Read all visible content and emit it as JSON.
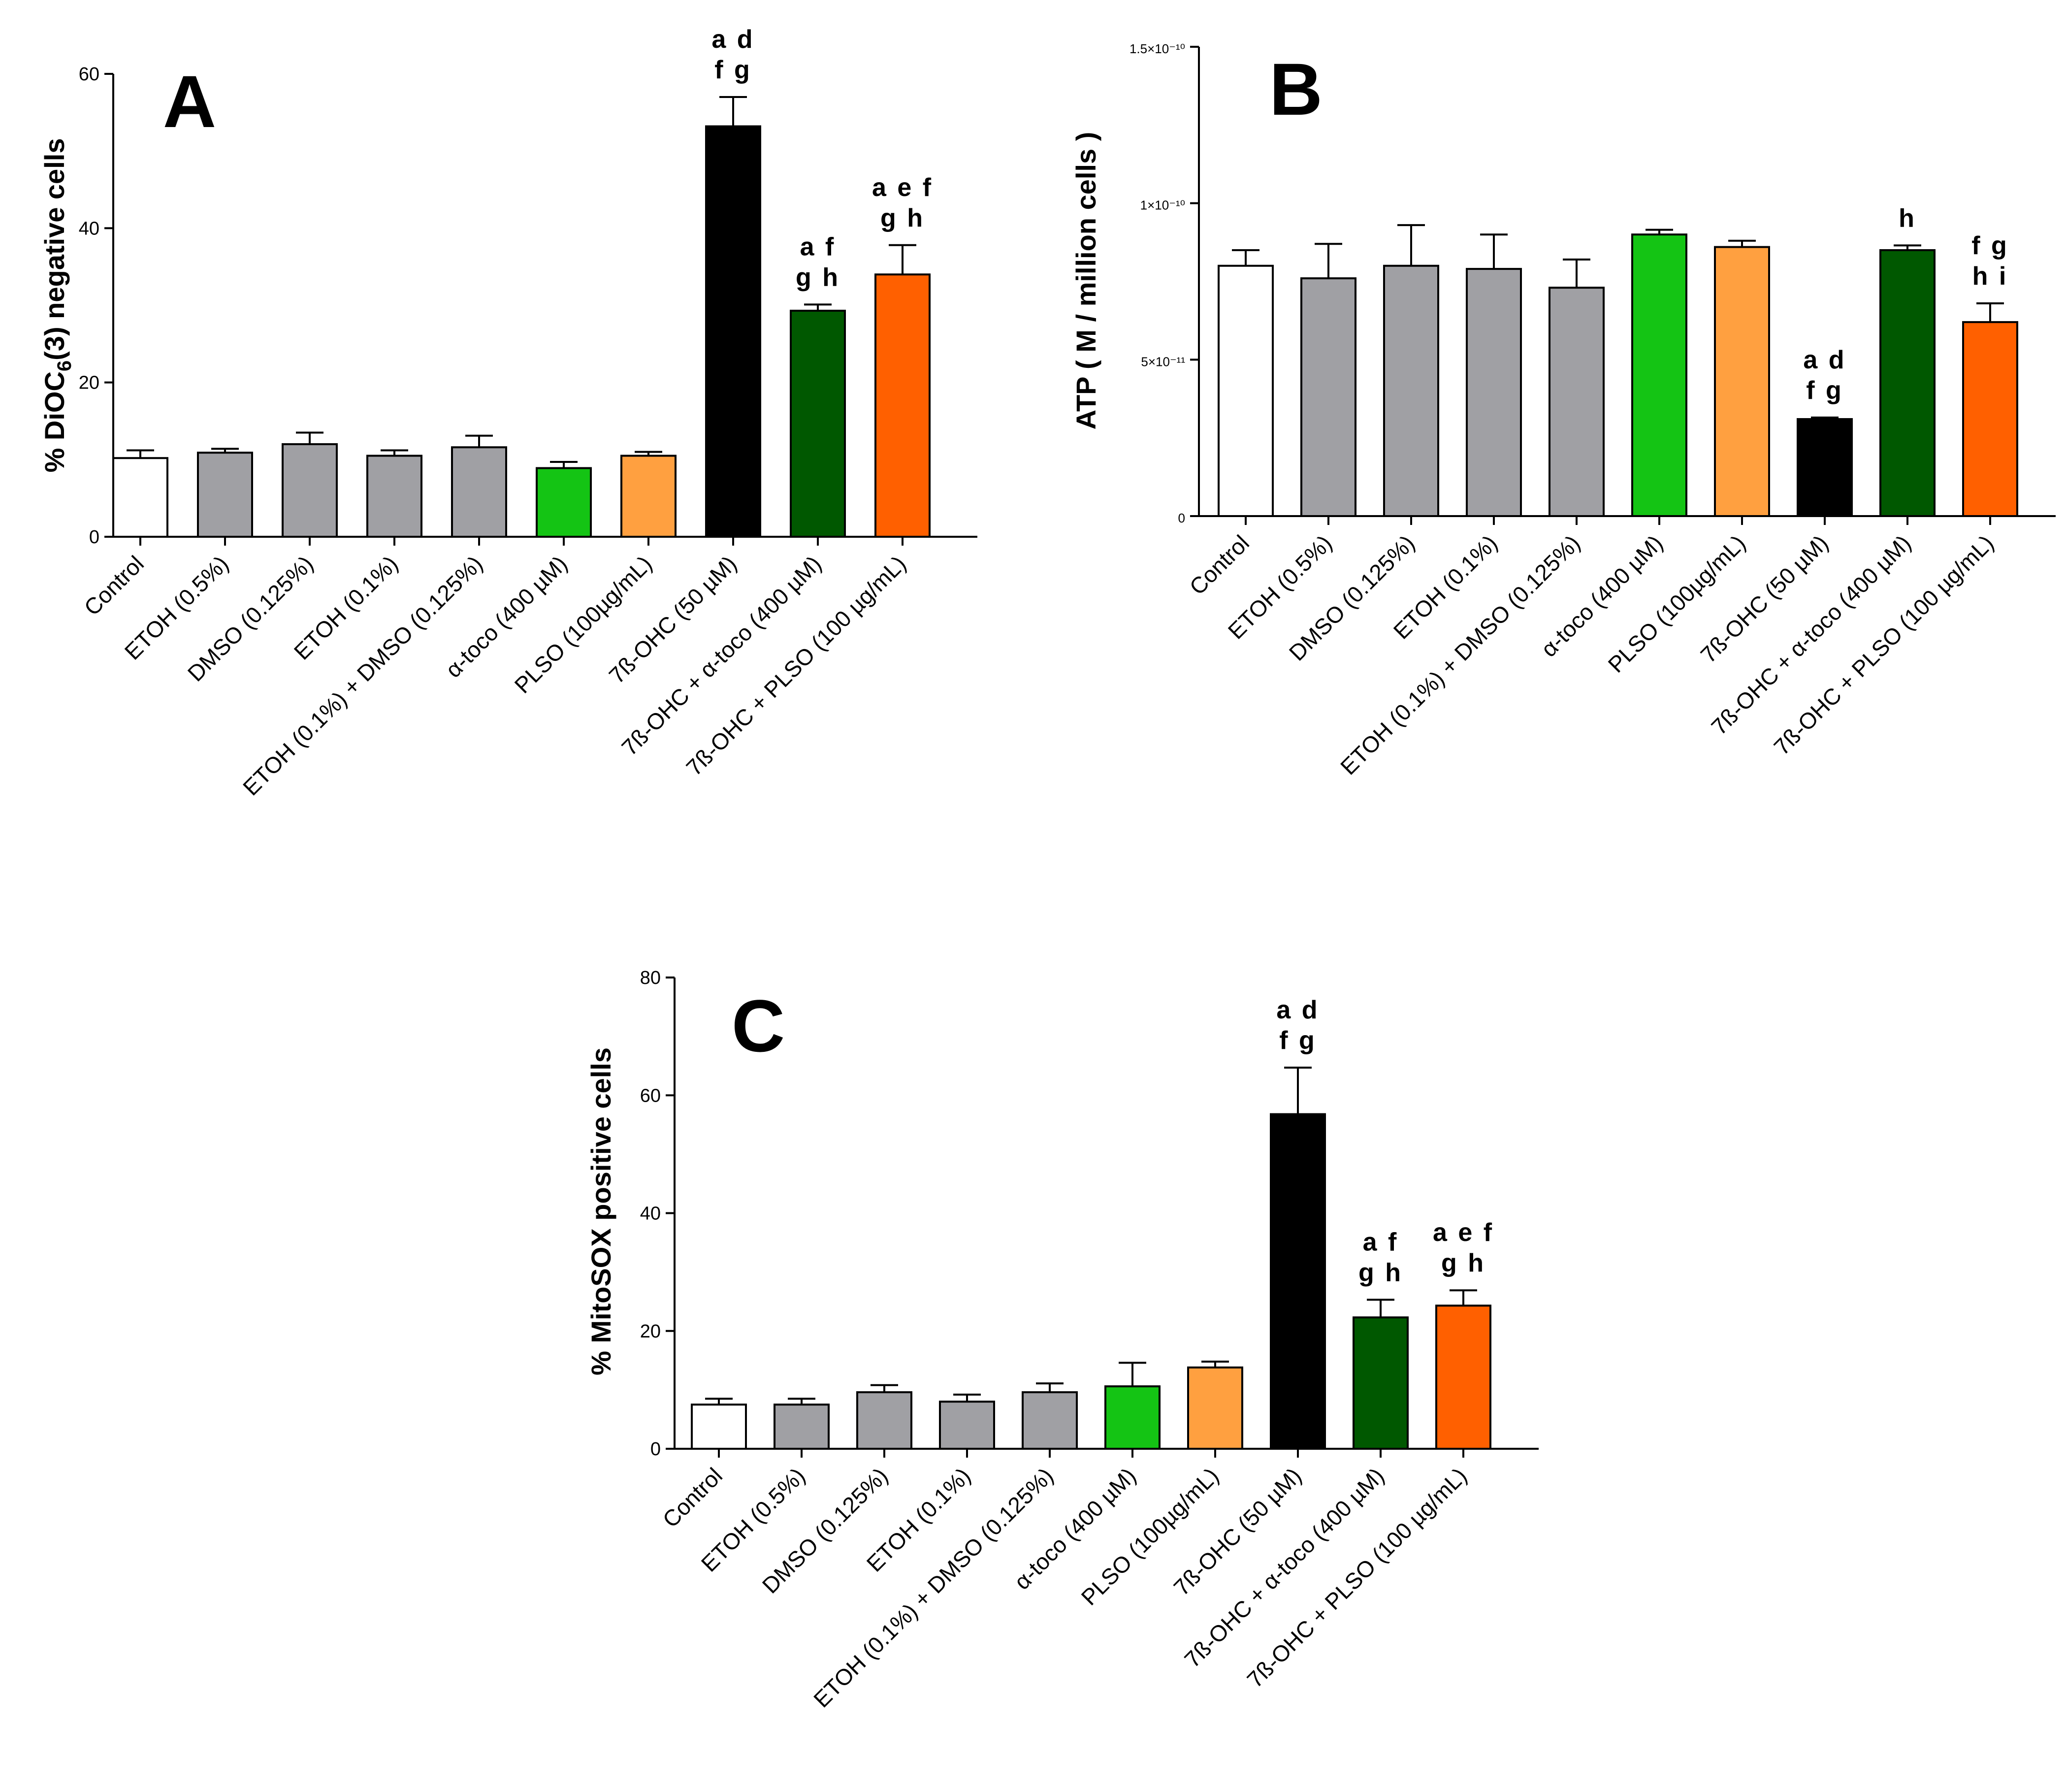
{
  "chart_data": [
    {
      "panel": "A",
      "type": "bar",
      "ylabel_prefix": "% DiOC",
      "ylabel_sub": "6",
      "ylabel_suffix": "(3) negative cells",
      "ylim": [
        0,
        60
      ],
      "yticks": [
        "0",
        "20",
        "40",
        "60"
      ],
      "ytick_values": [
        0,
        20,
        40,
        60
      ],
      "categories": [
        "Control",
        "ETOH (0.5%)",
        "DMSO (0.125%)",
        "ETOH (0.1%)",
        "ETOH (0.1%) + DMSO (0.125%)",
        "α-toco (400 µM)",
        "PLSO (100µg/mL)",
        "7ß-OHC (50 µM)",
        "7ß-OHC + α-toco (400 µM)",
        "7ß-OHC + PLSO (100 µg/mL)"
      ],
      "values": [
        10.2,
        10.9,
        12.0,
        10.5,
        11.6,
        8.9,
        10.5,
        53.2,
        29.3,
        34.0
      ],
      "errors": [
        1.0,
        0.5,
        1.5,
        0.7,
        1.5,
        0.8,
        0.5,
        3.8,
        0.8,
        3.8
      ],
      "colors": [
        "#ffffff",
        "#a0a0a4",
        "#a0a0a4",
        "#a0a0a4",
        "#a0a0a4",
        "#14c414",
        "#ffa040",
        "#000000",
        "#005800",
        "#ff6000"
      ],
      "annotations": [
        null,
        null,
        null,
        null,
        null,
        null,
        null,
        [
          "a d",
          "f g"
        ],
        [
          "a f",
          "g h"
        ],
        [
          "a e f",
          "g h"
        ]
      ],
      "grid": false
    },
    {
      "panel": "B",
      "type": "bar",
      "ylabel": "ATP ( M / million cells )",
      "ylim": [
        0,
        1.5e-10
      ],
      "yticks": [
        "0",
        "5×10⁻¹¹",
        "1×10⁻¹⁰",
        "1.5×10⁻¹⁰"
      ],
      "ytick_values": [
        0,
        5e-11,
        1e-10,
        1.5e-10
      ],
      "categories": [
        "Control",
        "ETOH (0.5%)",
        "DMSO (0.125%)",
        "ETOH (0.1%)",
        "ETOH (0.1%) + DMSO (0.125%)",
        "α-toco (400 µM)",
        "PLSO (100µg/mL)",
        "7ß-OHC (50 µM)",
        "7ß-OHC + α-toco (400 µM)",
        "7ß-OHC + PLSO (100 µg/mL)"
      ],
      "values": [
        8e-11,
        7.6e-11,
        8e-11,
        7.9e-11,
        7.3e-11,
        9e-11,
        8.6e-11,
        3.1e-11,
        8.5e-11,
        6.2e-11
      ],
      "errors": [
        5e-12,
        1.1e-11,
        1.3e-11,
        1.1e-11,
        9e-12,
        1.5e-12,
        2e-12,
        5e-13,
        1.5e-12,
        6e-12
      ],
      "colors": [
        "#ffffff",
        "#a0a0a4",
        "#a0a0a4",
        "#a0a0a4",
        "#a0a0a4",
        "#14c414",
        "#ffa040",
        "#000000",
        "#005800",
        "#ff6000"
      ],
      "annotations": [
        null,
        null,
        null,
        null,
        null,
        null,
        null,
        [
          "a d",
          "f g"
        ],
        [
          "h"
        ],
        [
          "f g",
          "h i"
        ]
      ],
      "grid": false
    },
    {
      "panel": "C",
      "type": "bar",
      "ylabel": "% MitoSOX positive cells",
      "ylim": [
        0,
        80
      ],
      "yticks": [
        "0",
        "20",
        "40",
        "60",
        "80"
      ],
      "ytick_values": [
        0,
        20,
        40,
        60,
        80
      ],
      "categories": [
        "Control",
        "ETOH (0.5%)",
        "DMSO (0.125%)",
        "ETOH (0.1%)",
        "ETOH (0.1%) + DMSO (0.125%)",
        "α-toco (400 µM)",
        "PLSO (100µg/mL)",
        "7ß-OHC (50 µM)",
        "7ß-OHC + α-toco (400 µM)",
        "7ß-OHC + PLSO (100 µg/mL)"
      ],
      "values": [
        7.5,
        7.5,
        9.6,
        8.0,
        9.6,
        10.6,
        13.8,
        56.8,
        22.3,
        24.3
      ],
      "errors": [
        1.0,
        1.0,
        1.2,
        1.2,
        1.5,
        4.0,
        1.0,
        7.9,
        3.0,
        2.6
      ],
      "colors": [
        "#ffffff",
        "#a0a0a4",
        "#a0a0a4",
        "#a0a0a4",
        "#a0a0a4",
        "#14c414",
        "#ffa040",
        "#000000",
        "#005800",
        "#ff6000"
      ],
      "annotations": [
        null,
        null,
        null,
        null,
        null,
        null,
        null,
        [
          "a d",
          "f g"
        ],
        [
          "a f",
          "g h"
        ],
        [
          "a e f",
          "g h"
        ]
      ],
      "grid": false
    }
  ]
}
